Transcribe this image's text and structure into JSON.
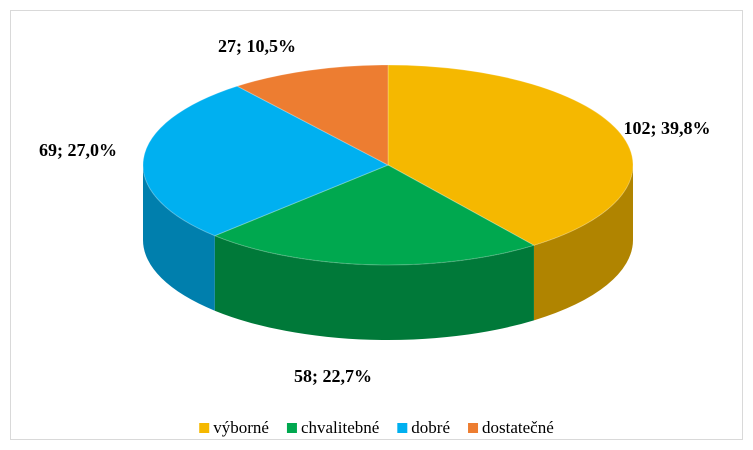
{
  "chart_data": {
    "type": "pie",
    "categories": [
      "výborné",
      "chvalitebné",
      "dobré",
      "dostatečné"
    ],
    "values": [
      102,
      58,
      69,
      27
    ],
    "value_labels": [
      "102; 39,8%",
      "58; 22,7%",
      "69; 27,0%",
      "27; 10,5%"
    ],
    "colors": [
      "#f5b800",
      "#00a84f",
      "#00b0f0",
      "#ed7d31"
    ],
    "legend": "bottom"
  }
}
